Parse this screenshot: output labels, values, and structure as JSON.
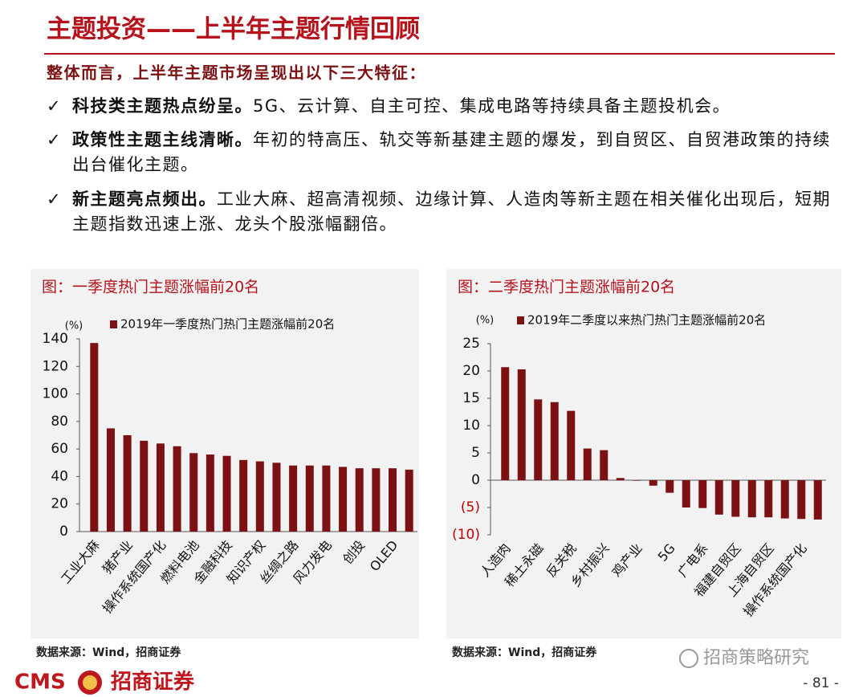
{
  "header": {
    "title": "主题投资——上半年主题行情回顾"
  },
  "intro": "整体而言，上半年主题市场呈现出以下三大特征：",
  "bullets": [
    {
      "bold": "科技类主题热点纷呈。",
      "text": "5G、云计算、自主可控、集成电路等持续具备主题投机会。"
    },
    {
      "bold": "政策性主题主线清晰。",
      "text": "年初的特高压、轨交等新基建主题的爆发，到自贸区、自贸港政策的持续出台催化主题。"
    },
    {
      "bold": "新主题亮点频出。",
      "text": "工业大麻、超高清视频、边缘计算、人造肉等新主题在相关催化出现后，短期主题指数迅速上涨、龙头个股涨幅翻倍。"
    }
  ],
  "chart_data": [
    {
      "type": "bar",
      "title": "图：一季度热门主题涨幅前20名",
      "y_label": "(%)",
      "categories": [
        "工业大麻",
        null,
        "猪产业",
        null,
        "操作系统国产化",
        null,
        "燃料电池",
        null,
        "金融科技",
        null,
        "知识产权",
        null,
        "丝绸之路",
        null,
        "风力发电",
        null,
        "创投",
        null,
        "OLED",
        null
      ],
      "series": [
        {
          "name": "2019年一季度热门热门主题涨幅前20名",
          "color": "#7b1113",
          "values": [
            137,
            75,
            70,
            66,
            64,
            62,
            57,
            56,
            55,
            52,
            51,
            50,
            48,
            48,
            48,
            47,
            46,
            46,
            46,
            45
          ]
        }
      ],
      "ylim": [
        0,
        140
      ],
      "yticks": [
        0,
        20,
        40,
        60,
        80,
        100,
        120,
        140
      ],
      "source": "数据来源：Wind，招商证券"
    },
    {
      "type": "bar",
      "title": "图：二季度热门主题涨幅前20名",
      "y_label": "(%)",
      "categories": [
        "人造肉",
        null,
        "稀土永磁",
        null,
        "反关税",
        null,
        "乡村振兴",
        null,
        "鸡产业",
        null,
        "5G",
        null,
        "广电系",
        null,
        "福建自贸区",
        null,
        "上海自贸区",
        null,
        "操作系统国产化",
        null
      ],
      "series": [
        {
          "name": "2019年二季度以来热门热门主题涨幅前20名",
          "color": "#7b1113",
          "values": [
            20.7,
            20.3,
            14.8,
            14.3,
            12.7,
            5.8,
            5.5,
            0.4,
            -0.1,
            -1.0,
            -2.3,
            -5.0,
            -5.1,
            -6.3,
            -6.7,
            -6.8,
            -6.8,
            -7.0,
            -7.1,
            -7.2
          ]
        }
      ],
      "ylim": [
        -10,
        25
      ],
      "yticks": [
        {
          "value": -10,
          "label": "(10)"
        },
        {
          "value": -5,
          "label": "(5)"
        },
        0,
        5,
        10,
        15,
        20,
        25
      ],
      "negative_tick_color": "#c00000",
      "source": "数据来源：Wind，招商证券"
    }
  ],
  "footer": {
    "logo": "CMS",
    "company": "招商证券",
    "watermark": "招商策略研究",
    "page": "- 81 -"
  }
}
